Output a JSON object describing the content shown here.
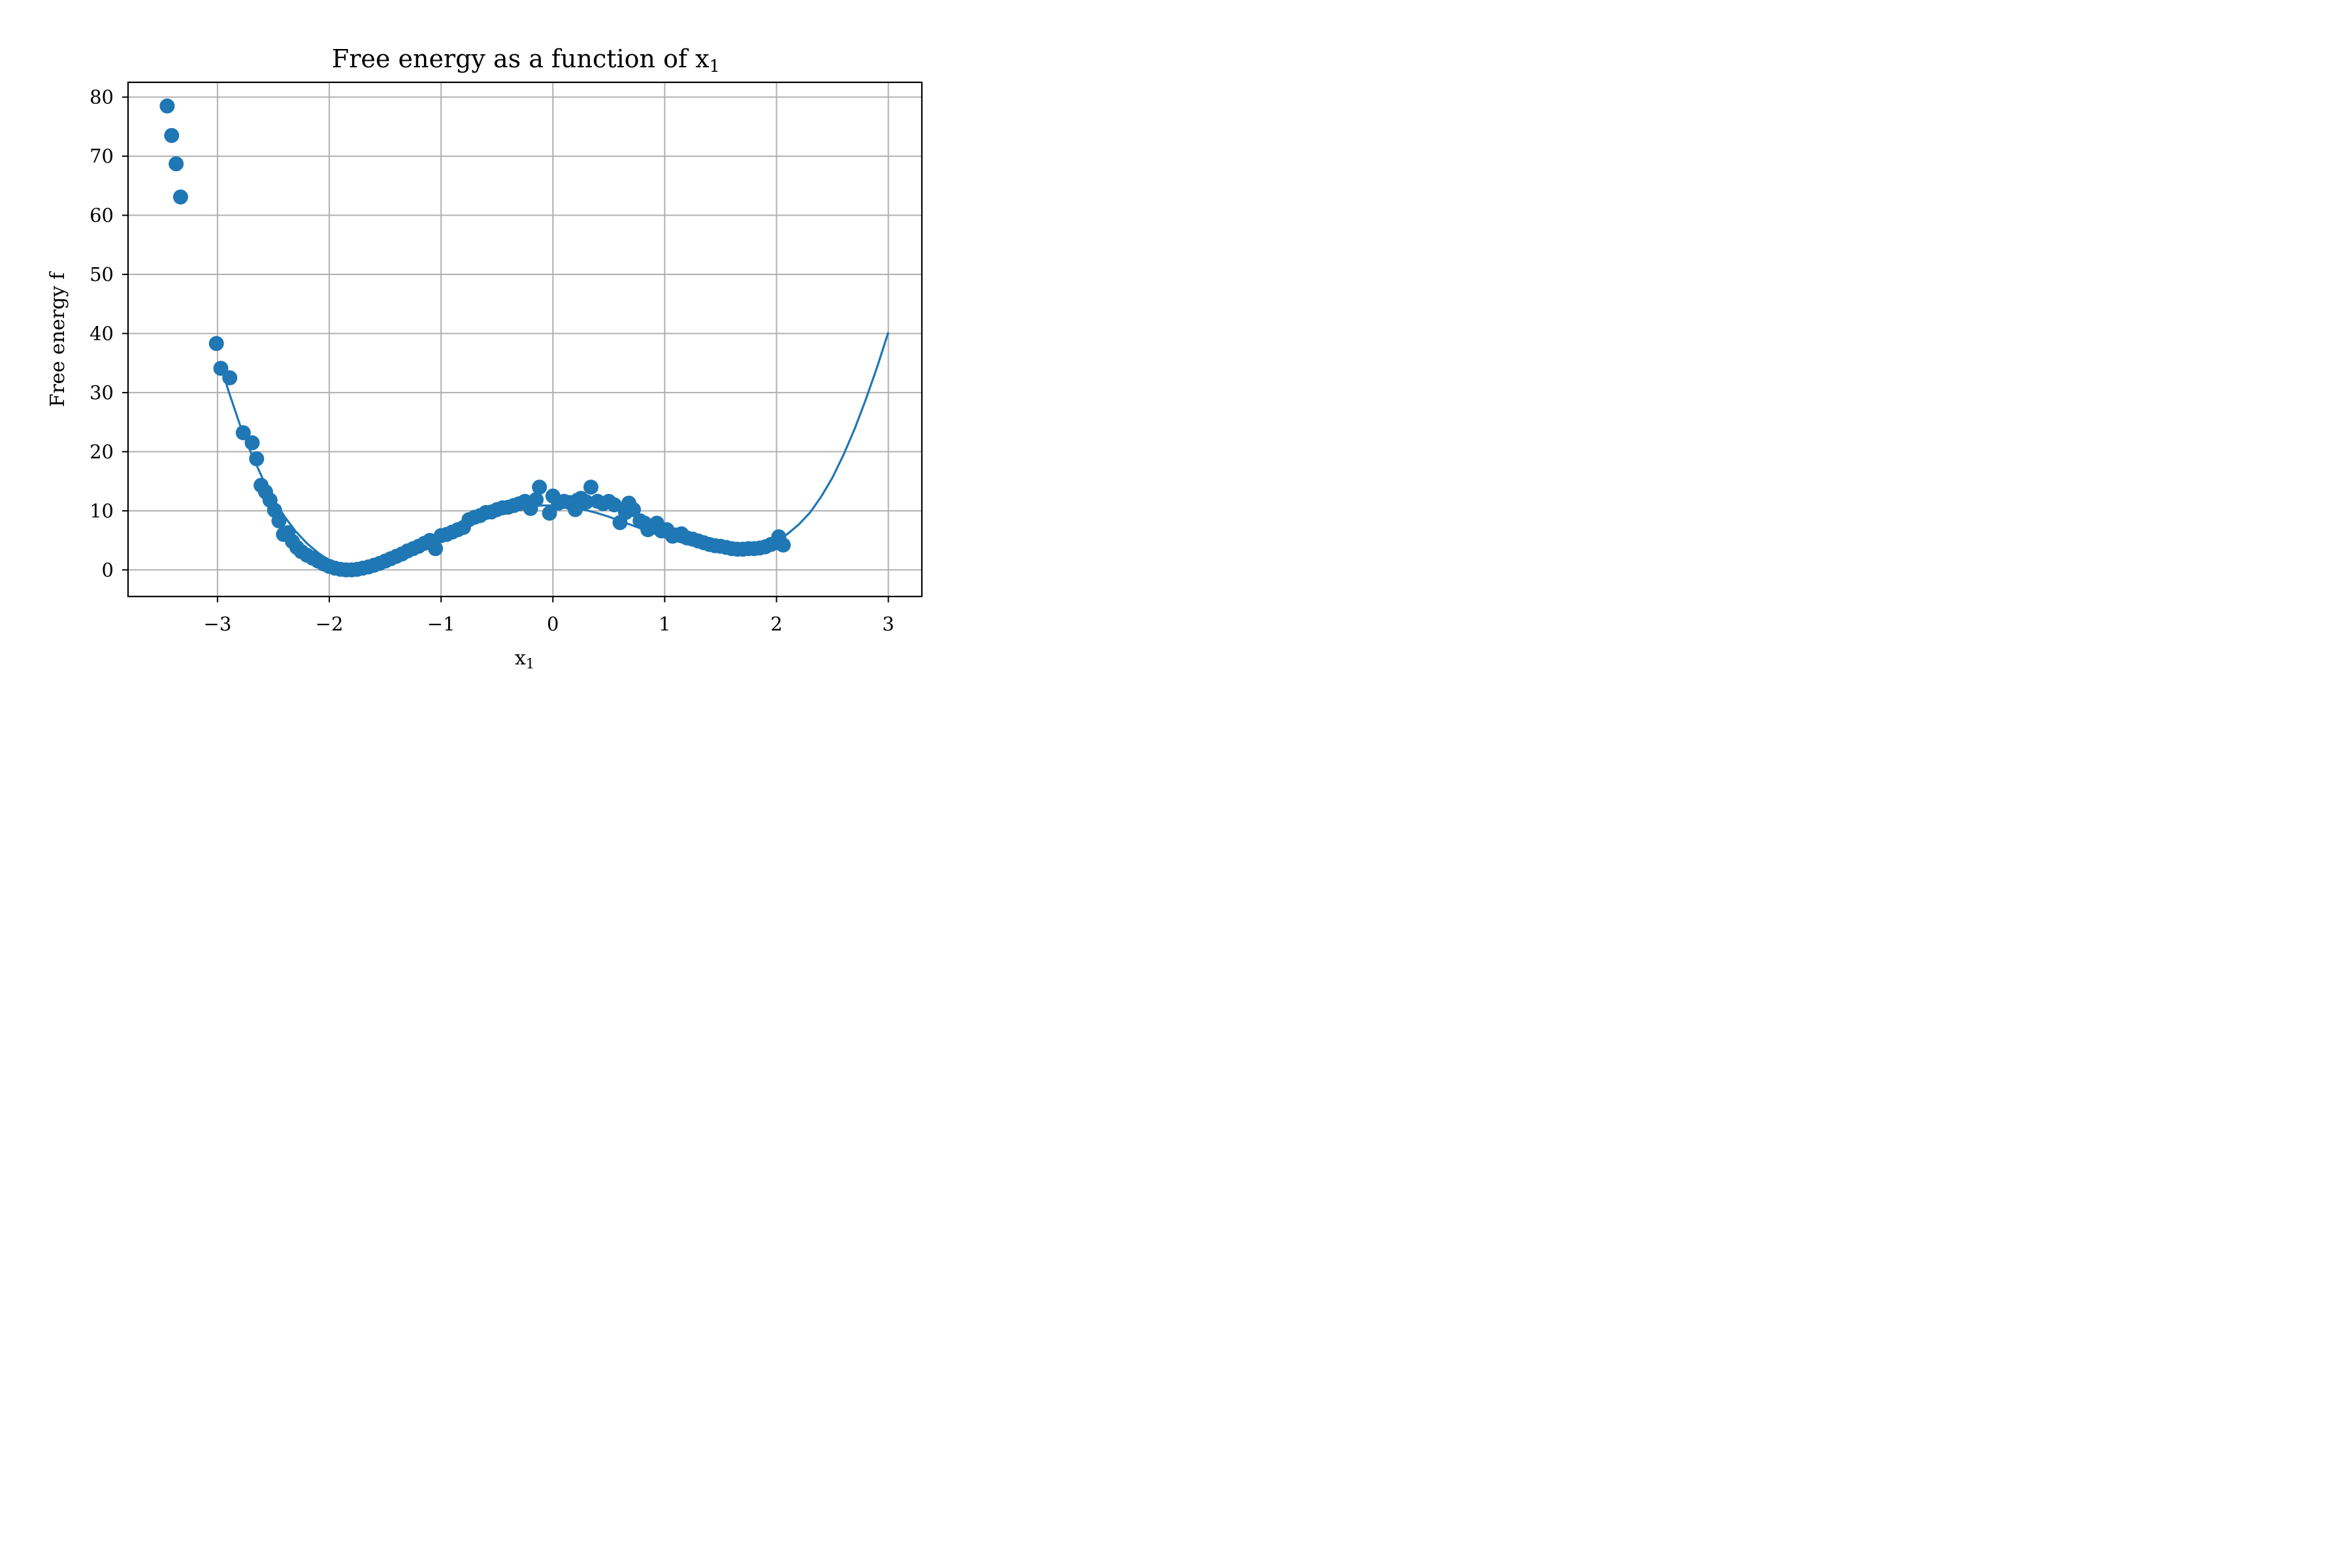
{
  "chart_data": {
    "type": "scatter",
    "title": "Free energy as a function of x",
    "title_subscript": "1",
    "xlabel": "x",
    "xlabel_subscript": "1",
    "ylabel": "Free energy f",
    "xlim": [
      -3.8,
      3.3
    ],
    "ylim": [
      -4.5,
      82.5
    ],
    "x_ticks": [
      -3,
      -2,
      -1,
      0,
      1,
      2,
      3
    ],
    "x_tick_labels": [
      "−3",
      "−2",
      "−1",
      "0",
      "1",
      "2",
      "3"
    ],
    "y_ticks": [
      0,
      10,
      20,
      30,
      40,
      50,
      60,
      70,
      80
    ],
    "y_tick_labels": [
      "0",
      "10",
      "20",
      "30",
      "40",
      "50",
      "60",
      "70",
      "80"
    ],
    "grid": true,
    "color": "#1f77b4",
    "series": [
      {
        "kind": "scatter",
        "x": [
          -3.45,
          -3.41,
          -3.37,
          -3.33,
          -3.01,
          -2.97,
          -2.89,
          -2.77,
          -2.69,
          -2.65,
          -2.61,
          -2.57,
          -2.53,
          -2.49,
          -2.45,
          -2.41,
          -2.37,
          -2.33,
          -2.29,
          -2.25,
          -2.2,
          -2.15,
          -2.1,
          -2.05,
          -2.0,
          -1.95,
          -1.9,
          -1.85,
          -1.8,
          -1.75,
          -1.7,
          -1.65,
          -1.6,
          -1.55,
          -1.5,
          -1.45,
          -1.4,
          -1.35,
          -1.3,
          -1.25,
          -1.2,
          -1.15,
          -1.1,
          -1.05,
          -1.0,
          -0.95,
          -0.9,
          -0.85,
          -0.8,
          -0.75,
          -0.7,
          -0.65,
          -0.6,
          -0.55,
          -0.5,
          -0.45,
          -0.4,
          -0.35,
          -0.3,
          -0.25,
          -0.2,
          -0.15,
          -0.12,
          -0.03,
          0.0,
          0.05,
          0.1,
          0.15,
          0.2,
          0.22,
          0.25,
          0.3,
          0.34,
          0.4,
          0.45,
          0.5,
          0.55,
          0.6,
          0.65,
          0.68,
          0.72,
          0.78,
          0.82,
          0.85,
          0.88,
          0.93,
          0.97,
          1.02,
          1.07,
          1.1,
          1.15,
          1.2,
          1.25,
          1.3,
          1.35,
          1.4,
          1.45,
          1.5,
          1.55,
          1.6,
          1.65,
          1.7,
          1.75,
          1.8,
          1.85,
          1.9,
          1.95,
          2.0,
          2.02,
          2.06
        ],
        "y": [
          78.5,
          73.5,
          68.7,
          63.1,
          38.3,
          34.1,
          32.5,
          23.2,
          21.5,
          18.8,
          14.3,
          13.2,
          11.8,
          10.1,
          8.3,
          6.0,
          6.3,
          4.8,
          3.8,
          3.1,
          2.5,
          2.0,
          1.5,
          1.0,
          0.6,
          0.3,
          0.1,
          0.0,
          0.0,
          0.1,
          0.3,
          0.5,
          0.8,
          1.1,
          1.5,
          1.9,
          2.3,
          2.7,
          3.2,
          3.6,
          4.0,
          4.5,
          5.0,
          3.6,
          5.8,
          6.0,
          6.4,
          6.8,
          7.2,
          8.5,
          8.9,
          9.2,
          9.7,
          9.8,
          10.2,
          10.5,
          10.6,
          10.9,
          11.2,
          11.6,
          10.4,
          11.9,
          14.0,
          9.6,
          12.5,
          11.3,
          11.6,
          11.4,
          10.2,
          11.8,
          12.1,
          11.5,
          14.0,
          11.6,
          11.2,
          11.6,
          11.0,
          8.0,
          9.7,
          11.3,
          10.2,
          8.3,
          7.9,
          6.8,
          7.4,
          7.9,
          6.6,
          6.8,
          5.7,
          5.9,
          6.1,
          5.4,
          5.2,
          4.9,
          4.6,
          4.3,
          4.1,
          4.0,
          3.8,
          3.6,
          3.5,
          3.5,
          3.6,
          3.6,
          3.7,
          3.9,
          4.3,
          4.6,
          5.6,
          4.2
        ]
      },
      {
        "kind": "line",
        "x": [
          -2.95,
          -2.9,
          -2.8,
          -2.7,
          -2.6,
          -2.5,
          -2.4,
          -2.3,
          -2.2,
          -2.1,
          -2.0,
          -1.9,
          -1.8,
          -1.7,
          -1.6,
          -1.5,
          -1.4,
          -1.3,
          -1.2,
          -1.1,
          -1.0,
          -0.9,
          -0.8,
          -0.7,
          -0.6,
          -0.5,
          -0.4,
          -0.3,
          -0.2,
          -0.1,
          0.0,
          0.1,
          0.2,
          0.3,
          0.4,
          0.5,
          0.6,
          0.7,
          0.8,
          0.9,
          1.0,
          1.1,
          1.2,
          1.3,
          1.4,
          1.5,
          1.6,
          1.7,
          1.8,
          1.9,
          2.0,
          2.1,
          2.2,
          2.3,
          2.4,
          2.5,
          2.6,
          2.7,
          2.8,
          2.9,
          3.0
        ],
        "y": [
          33.3,
          30.2,
          24.6,
          19.8,
          15.6,
          12.0,
          9.0,
          6.5,
          4.5,
          2.9,
          1.6,
          0.7,
          0.15,
          0.0,
          0.15,
          0.6,
          1.3,
          2.2,
          3.2,
          4.3,
          5.4,
          6.4,
          7.4,
          8.3,
          9.1,
          9.7,
          10.2,
          10.6,
          10.8,
          10.9,
          10.9,
          10.8,
          10.5,
          10.1,
          9.6,
          9.0,
          8.3,
          7.6,
          6.9,
          6.2,
          5.5,
          4.9,
          4.4,
          4.0,
          3.7,
          3.5,
          3.5,
          3.6,
          3.9,
          4.3,
          4.9,
          6.1,
          7.7,
          9.7,
          12.4,
          15.6,
          19.5,
          23.9,
          28.9,
          34.3,
          40.2
        ]
      }
    ]
  }
}
